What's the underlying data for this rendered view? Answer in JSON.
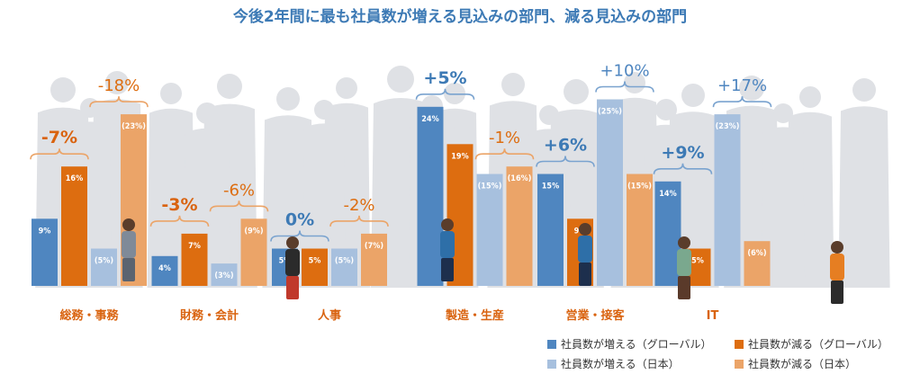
{
  "chart_data": {
    "type": "bar",
    "title": "今後2年間に最も社員数が増える見込みの部門、減る見込みの部門",
    "categories": [
      "総務・事務",
      "財務・会計",
      "人事",
      "製造・生産",
      "営業・接客",
      "IT"
    ],
    "ylim": [
      0,
      25
    ],
    "series": [
      {
        "name": "社員数が増える（グローバル）",
        "color": "#4f86c0",
        "values": [
          9,
          4,
          5,
          24,
          15,
          14
        ],
        "labels": [
          "9%",
          "4%",
          "5%",
          "24%",
          "15%",
          "14%"
        ]
      },
      {
        "name": "社員数が減る（グローバル）",
        "color": "#dd6d10",
        "values": [
          16,
          7,
          5,
          19,
          9,
          5
        ],
        "labels": [
          "16%",
          "7%",
          "5%",
          "19%",
          "9%",
          "5%"
        ]
      },
      {
        "name": "社員数が増える（日本）",
        "color": "#a7c0de",
        "values": [
          5,
          3,
          5,
          15,
          25,
          23
        ],
        "labels": [
          "(5%)",
          "(3%)",
          "(5%)",
          "(15%)",
          "(25%)",
          "(23%)"
        ]
      },
      {
        "name": "社員数が減る（日本）",
        "color": "#eba468",
        "values": [
          23,
          9,
          7,
          16,
          15,
          6
        ],
        "labels": [
          "(23%)",
          "(9%)",
          "(7%)",
          "(16%)",
          "(15%)",
          "(6%)"
        ]
      }
    ],
    "net_global": [
      "-7%",
      "-3%",
      "0%",
      "+5%",
      "+6%",
      "+9%"
    ],
    "net_japan": [
      "-18%",
      "-6%",
      "-2%",
      "-1%",
      "+10%",
      "+17%"
    ],
    "legend_position": "bottom-right",
    "grid": false
  },
  "colors": {
    "title": "#3d7ab5",
    "category_label": "#d9630f",
    "net_global_positive": "#3d7ab5",
    "net_global_negative": "#d9630f",
    "net_japan_positive": "#4f86c0",
    "net_japan_negative": "#dd6d10",
    "bracket_increase": "#7aa3cf",
    "bracket_decrease": "#eba468",
    "crowd": "#dfe1e5"
  }
}
